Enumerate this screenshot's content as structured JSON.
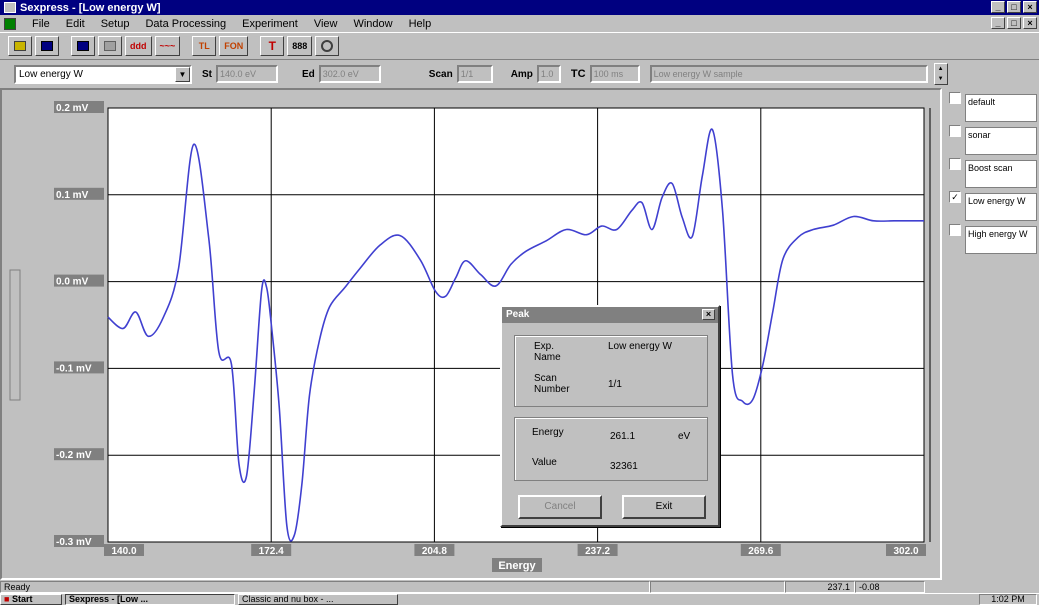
{
  "window": {
    "title": "Sexpress - [Low energy W]",
    "buttons": [
      "_",
      "□",
      "×"
    ]
  },
  "menu": [
    "File",
    "Edit",
    "Setup",
    "Data Processing",
    "Experiment",
    "View",
    "Window",
    "Help"
  ],
  "toolbar": {
    "buttons": [
      "open",
      "save",
      "save-as",
      "print",
      "ddd",
      "smooth",
      "tl",
      "fon",
      "t",
      "scale",
      "zoom"
    ],
    "labels": {
      "ddd": "ddd",
      "smooth": "~~~",
      "tl": "TL",
      "fon": "FON",
      "t": "T",
      "scale": "888"
    }
  },
  "params": {
    "experiment_select": "Low energy W",
    "st_label": "St",
    "st_value": "140.0 eV",
    "ed_label": "Ed",
    "ed_value": "302.0 eV",
    "scan_label": "Scan",
    "scan_value": "1/1",
    "amp_label": "Amp",
    "amp_value": "1.0",
    "tc_label": "TC",
    "tc_value": "100 ms",
    "comment_value": "Low energy W sample"
  },
  "chart_data": {
    "type": "line",
    "xlabel": "Energy",
    "xticks": [
      "140.0",
      "172.4",
      "204.8",
      "237.2",
      "269.6",
      "302.0"
    ],
    "yticks": [
      "0.2 mV",
      "0.1 mV",
      "0.0 mV",
      "-0.1 mV",
      "-0.2 mV",
      "-0.3 mV"
    ],
    "xlim": [
      140.0,
      302.0
    ],
    "ylim": [
      -0.3,
      0.2
    ],
    "grid": true,
    "series": [
      {
        "color": "#4040d0",
        "x": [
          140.0,
          143.0,
          145.5,
          148.0,
          151.0,
          154.0,
          157.0,
          160.0,
          162.0,
          164.5,
          166.0,
          167.5,
          169.0,
          170.5,
          171.5,
          172.5,
          174.0,
          175.5,
          177.0,
          178.5,
          180.0,
          182.0,
          184.0,
          187.0,
          190.0,
          194.0,
          198.0,
          202.0,
          205.0,
          207.0,
          209.0,
          211.0,
          214.0,
          217.0,
          220.0,
          223.0,
          227.0,
          231.0,
          235.0,
          238.0,
          241.0,
          244.0,
          246.0,
          248.0,
          250.0,
          252.0,
          254.0,
          256.0,
          258.0,
          260.0,
          262.0,
          264.0,
          266.0,
          268.0,
          270.0,
          272.0,
          274.0,
          277.0,
          280.0,
          284.0,
          288.0,
          292.0,
          296.0,
          299.0,
          302.0
        ],
        "y": [
          -0.041,
          -0.054,
          -0.035,
          -0.063,
          -0.041,
          0.015,
          0.158,
          0.05,
          -0.081,
          -0.095,
          -0.21,
          -0.224,
          -0.128,
          -0.01,
          -0.007,
          -0.054,
          -0.145,
          -0.281,
          -0.292,
          -0.233,
          -0.131,
          -0.067,
          -0.029,
          -0.007,
          0.015,
          0.042,
          0.053,
          0.025,
          -0.011,
          -0.017,
          0.004,
          0.024,
          0.008,
          -0.005,
          0.02,
          0.035,
          0.047,
          0.06,
          0.054,
          0.064,
          0.06,
          0.082,
          0.091,
          0.06,
          0.097,
          0.113,
          0.074,
          0.052,
          0.122,
          0.175,
          0.082,
          -0.108,
          -0.138,
          -0.136,
          -0.096,
          -0.034,
          0.026,
          0.051,
          0.06,
          0.065,
          0.075,
          0.07,
          0.07,
          0.07,
          0.07
        ]
      }
    ]
  },
  "legend": [
    {
      "label": "default",
      "checked": false
    },
    {
      "label": "sonar",
      "checked": false
    },
    {
      "label": "Boost scan",
      "checked": false
    },
    {
      "label": "Low energy W",
      "checked": true
    },
    {
      "label": "High energy W",
      "checked": false
    }
  ],
  "dialog": {
    "title": "Peak",
    "exp_name_label": "Exp. Name",
    "exp_name_value": "Low energy W",
    "scan_number_label": "Scan Number",
    "scan_number_value": "1/1",
    "energy_label": "Energy",
    "energy_value": "261.1",
    "energy_unit": "eV",
    "value_label": "Value",
    "value_value": "32361",
    "cancel_label": "Cancel",
    "exit_label": "Exit"
  },
  "status": {
    "left": "Ready",
    "x_readout": "237.1",
    "y_readout": "-0.08"
  },
  "taskbar": {
    "start": "Start",
    "tasks": [
      "Sexpress - [Low ...",
      "Classic and nu box - ..."
    ],
    "clock": "1:02 PM"
  }
}
